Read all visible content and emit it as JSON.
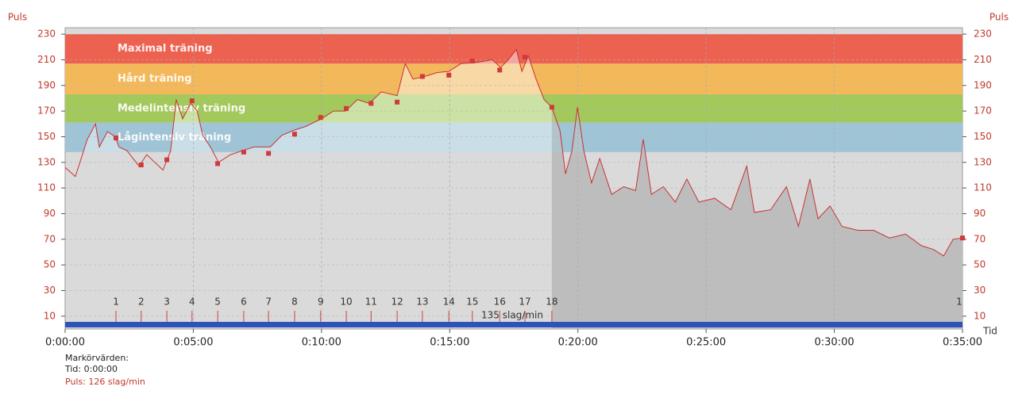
{
  "chart_data": {
    "type": "line",
    "ylabel": "Puls",
    "xlabel": "Tid",
    "color": "#c83232",
    "x": [
      0,
      24,
      52,
      71,
      80,
      99,
      117,
      126,
      145,
      173,
      191,
      210,
      229,
      247,
      260,
      275,
      294,
      309,
      322,
      340,
      359,
      387,
      414,
      442,
      480,
      507,
      535,
      563,
      600,
      628,
      656,
      684,
      712,
      740,
      777,
      796,
      814,
      842,
      870,
      898,
      926,
      963,
      1000,
      1019,
      1037,
      1056,
      1069,
      1084,
      1102,
      1121,
      1139,
      1158,
      1171,
      1186,
      1199,
      1214,
      1232,
      1251,
      1279,
      1307,
      1335,
      1353,
      1372,
      1400,
      1428,
      1455,
      1483,
      1520,
      1558,
      1595,
      1613,
      1651,
      1688,
      1716,
      1743,
      1762,
      1790,
      1818,
      1855,
      1892,
      1929,
      1967,
      2004,
      2032,
      2056,
      2078,
      2100
    ],
    "values": [
      126,
      119,
      148,
      160,
      142,
      154,
      150,
      142,
      139,
      127,
      136,
      130,
      124,
      139,
      179,
      164,
      176,
      170,
      151,
      142,
      130,
      136,
      139,
      142,
      142,
      151,
      155,
      158,
      164,
      170,
      170,
      179,
      176,
      185,
      182,
      207,
      195,
      197,
      200,
      201,
      207,
      208,
      210,
      204,
      210,
      218,
      201,
      213,
      195,
      179,
      173,
      155,
      121,
      139,
      173,
      139,
      114,
      133,
      105,
      111,
      108,
      148,
      105,
      111,
      99,
      117,
      99,
      102,
      93,
      127,
      91,
      93,
      111,
      80,
      117,
      86,
      96,
      80,
      77,
      77,
      71,
      74,
      65,
      62,
      57,
      70,
      71
    ],
    "xlim": [
      0,
      2100
    ],
    "xticks": [
      {
        "value": 0,
        "label": "0:00:00"
      },
      {
        "value": 300,
        "label": "0:05:00"
      },
      {
        "value": 600,
        "label": "0:10:00"
      },
      {
        "value": 900,
        "label": "0:15:00"
      },
      {
        "value": 1200,
        "label": "0:20:00"
      },
      {
        "value": 1500,
        "label": "0:25:00"
      },
      {
        "value": 1800,
        "label": "0:30:00"
      },
      {
        "value": 2100,
        "label": "0:35:00"
      }
    ],
    "ylim": [
      0,
      235
    ],
    "yticks": [
      10,
      30,
      50,
      70,
      90,
      110,
      130,
      150,
      170,
      190,
      210,
      230
    ],
    "grid": true,
    "zones": [
      {
        "name": "Maximal träning",
        "color": "#ec6150",
        "low": 207,
        "high": 230
      },
      {
        "name": "Hård träning",
        "color": "#f3b85a",
        "low": 183,
        "high": 207
      },
      {
        "name": "Medelintensiv träning",
        "color": "#a3c85c",
        "low": 161,
        "high": 183
      },
      {
        "name": "Lågintensiv träning",
        "color": "#9fc4d6",
        "low": 138,
        "high": 161
      }
    ],
    "markers": [
      {
        "label": "1",
        "x": 119,
        "value": 149
      },
      {
        "label": "2",
        "x": 178,
        "value": 128
      },
      {
        "label": "3",
        "x": 238,
        "value": 132
      },
      {
        "label": "4",
        "x": 297,
        "value": 178
      },
      {
        "label": "5",
        "x": 357,
        "value": 129
      },
      {
        "label": "6",
        "x": 418,
        "value": 138
      },
      {
        "label": "7",
        "x": 476,
        "value": 137
      },
      {
        "label": "8",
        "x": 537,
        "value": 152
      },
      {
        "label": "9",
        "x": 598,
        "value": 165
      },
      {
        "label": "10",
        "x": 658,
        "value": 172
      },
      {
        "label": "11",
        "x": 716,
        "value": 176
      },
      {
        "label": "12",
        "x": 777,
        "value": 177
      },
      {
        "label": "13",
        "x": 836,
        "value": 197
      },
      {
        "label": "14",
        "x": 898,
        "value": 198
      },
      {
        "label": "15",
        "x": 953,
        "value": 209
      },
      {
        "label": "16",
        "x": 1017,
        "value": 202
      },
      {
        "label": "17",
        "x": 1076,
        "value": 212
      },
      {
        "label": "18",
        "x": 1139,
        "value": 173
      },
      {
        "label": "1",
        "x": 2100,
        "value": 71
      }
    ],
    "bar_label": "135 slag/min",
    "footer": {
      "title": "Markörvärden:",
      "time": "Tid: 0:00:00",
      "pulse": "Puls: 126 slag/min"
    }
  }
}
